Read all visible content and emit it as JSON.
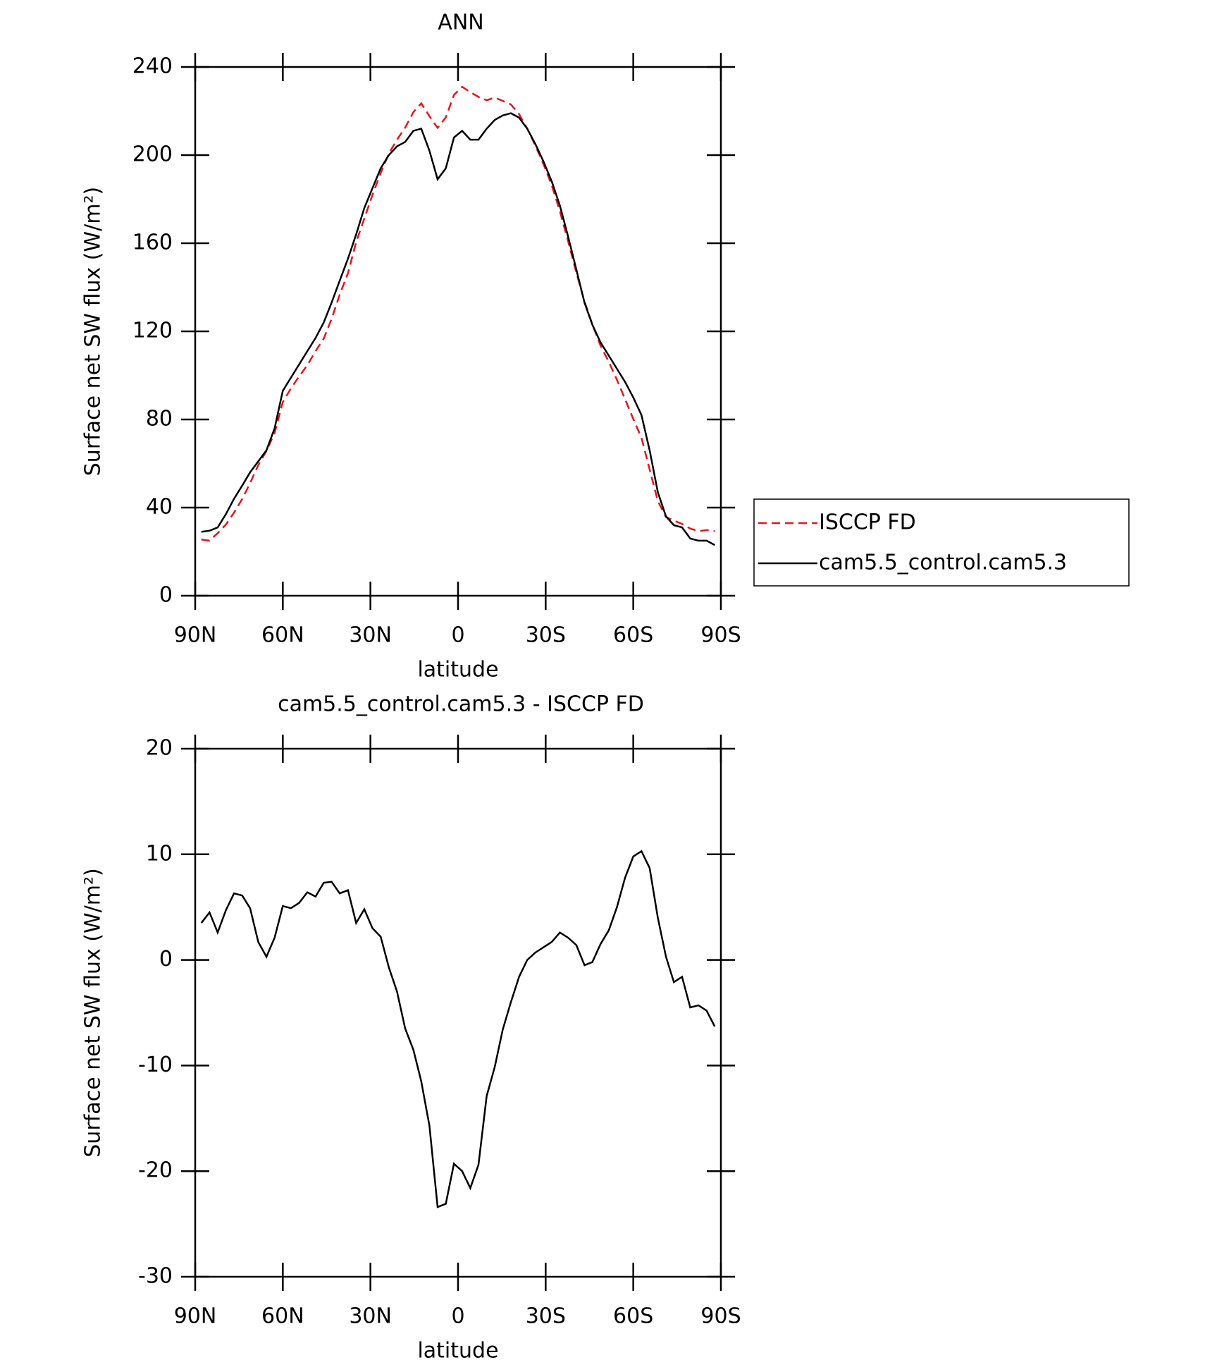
{
  "chart_data": [
    {
      "type": "line",
      "title": "ANN",
      "xlabel": "latitude",
      "ylabel": "Surface net SW flux (W/m²)",
      "x": [
        87.9,
        85.1,
        82.3,
        79.5,
        76.7,
        73.9,
        71.2,
        68.4,
        65.6,
        62.8,
        60.0,
        57.2,
        54.4,
        51.6,
        48.8,
        46.0,
        43.3,
        40.5,
        37.7,
        34.9,
        32.1,
        29.3,
        26.5,
        23.7,
        20.9,
        18.1,
        15.3,
        12.6,
        9.8,
        7.0,
        4.2,
        1.4,
        -1.4,
        -4.2,
        -7.0,
        -9.8,
        -12.6,
        -15.3,
        -18.1,
        -20.9,
        -23.7,
        -26.5,
        -29.3,
        -32.1,
        -34.9,
        -37.7,
        -40.5,
        -43.3,
        -46.0,
        -48.8,
        -51.6,
        -54.4,
        -57.2,
        -60.0,
        -62.8,
        -65.6,
        -68.4,
        -71.2,
        -73.9,
        -76.7,
        -79.5,
        -82.3,
        -85.1,
        -87.9
      ],
      "series": [
        {
          "name": "ISCCP FD",
          "color": "#e8141b",
          "dashed": true,
          "values": [
            25.5,
            25,
            28.4,
            32.3,
            37.7,
            43.9,
            51.1,
            59.3,
            65.7,
            73.9,
            87.9,
            94.1,
            99.6,
            104.6,
            111,
            116.7,
            125.6,
            136.7,
            146.4,
            160.5,
            171.2,
            182,
            191.8,
            200.7,
            207,
            212.5,
            219.5,
            223.5,
            217.7,
            212.4,
            217.1,
            227.3,
            231,
            228.6,
            226.4,
            224.9,
            226.1,
            224.6,
            223,
            218.6,
            212,
            204.3,
            195.8,
            186.3,
            174.4,
            160.9,
            146.6,
            133.5,
            123.2,
            113.5,
            106.2,
            98,
            89.2,
            80.2,
            71.7,
            57.3,
            43,
            35.7,
            34.1,
            32.6,
            30.5,
            29.3,
            29.8,
            29.3
          ]
        },
        {
          "name": "cam5.5_control.cam5.3",
          "color": "#000000",
          "dashed": false,
          "values": [
            29,
            29.5,
            31,
            37,
            44,
            50,
            56,
            61,
            66,
            76,
            93,
            99,
            105,
            111,
            117,
            124,
            133,
            143,
            153,
            164,
            176,
            185,
            194,
            200,
            204,
            206,
            211,
            212,
            202,
            189,
            194,
            208,
            211,
            207,
            207,
            212,
            216,
            218,
            219,
            217,
            212,
            205,
            197,
            188,
            177,
            163,
            148,
            133,
            123,
            115,
            109,
            103,
            97,
            90,
            82,
            66,
            47,
            36,
            32,
            31,
            26,
            25,
            25,
            23
          ]
        }
      ],
      "xlim": [
        90,
        -90
      ],
      "xticks": [
        {
          "value": 90,
          "label": "90N"
        },
        {
          "value": 60,
          "label": "60N"
        },
        {
          "value": 30,
          "label": "30N"
        },
        0,
        {
          "value": -30,
          "label": "30S"
        },
        {
          "value": -60,
          "label": "60S"
        },
        {
          "value": -90,
          "label": "90S"
        }
      ],
      "ylim": [
        0,
        240
      ],
      "yticks": [
        0,
        40,
        80,
        120,
        160,
        200,
        240
      ],
      "legend": "right"
    },
    {
      "type": "line",
      "title": "cam5.5_control.cam5.3 - ISCCP FD",
      "xlabel": "latitude",
      "ylabel": "Surface net SW flux (W/m²)",
      "x": [
        87.9,
        85.1,
        82.3,
        79.5,
        76.7,
        73.9,
        71.2,
        68.4,
        65.6,
        62.8,
        60.0,
        57.2,
        54.4,
        51.6,
        48.8,
        46.0,
        43.3,
        40.5,
        37.7,
        34.9,
        32.1,
        29.3,
        26.5,
        23.7,
        20.9,
        18.1,
        15.3,
        12.6,
        9.8,
        7.0,
        4.2,
        1.4,
        -1.4,
        -4.2,
        -7.0,
        -9.8,
        -12.6,
        -15.3,
        -18.1,
        -20.9,
        -23.7,
        -26.5,
        -29.3,
        -32.1,
        -34.9,
        -37.7,
        -40.5,
        -43.3,
        -46.0,
        -48.8,
        -51.6,
        -54.4,
        -57.2,
        -60.0,
        -62.8,
        -65.6,
        -68.4,
        -71.2,
        -73.9,
        -76.7,
        -79.5,
        -82.3,
        -85.1,
        -87.9
      ],
      "values": [
        3.5,
        4.5,
        2.6,
        4.7,
        6.3,
        6.1,
        4.9,
        1.7,
        0.3,
        2.1,
        5.1,
        4.9,
        5.4,
        6.4,
        6.0,
        7.3,
        7.4,
        6.3,
        6.6,
        3.5,
        4.8,
        3.0,
        2.2,
        -0.7,
        -3.0,
        -6.5,
        -8.5,
        -11.5,
        -15.7,
        -23.4,
        -23.1,
        -19.3,
        -20.0,
        -21.6,
        -19.4,
        -12.9,
        -10.1,
        -6.6,
        -4.0,
        -1.6,
        0.0,
        0.7,
        1.2,
        1.7,
        2.6,
        2.1,
        1.4,
        -0.5,
        -0.2,
        1.5,
        2.8,
        5.0,
        7.8,
        9.8,
        10.3,
        8.7,
        4.0,
        0.3,
        -2.1,
        -1.6,
        -4.5,
        -4.3,
        -4.8,
        -6.3
      ],
      "color": "#000000",
      "xlim": [
        90,
        -90
      ],
      "xticks": [
        {
          "value": 90,
          "label": "90N"
        },
        {
          "value": 60,
          "label": "60N"
        },
        {
          "value": 30,
          "label": "30N"
        },
        0,
        {
          "value": -30,
          "label": "30S"
        },
        {
          "value": -60,
          "label": "60S"
        },
        {
          "value": -90,
          "label": "90S"
        }
      ],
      "ylim": [
        -30,
        20
      ],
      "yticks": [
        -30,
        -20,
        -10,
        0,
        10,
        20
      ]
    }
  ]
}
